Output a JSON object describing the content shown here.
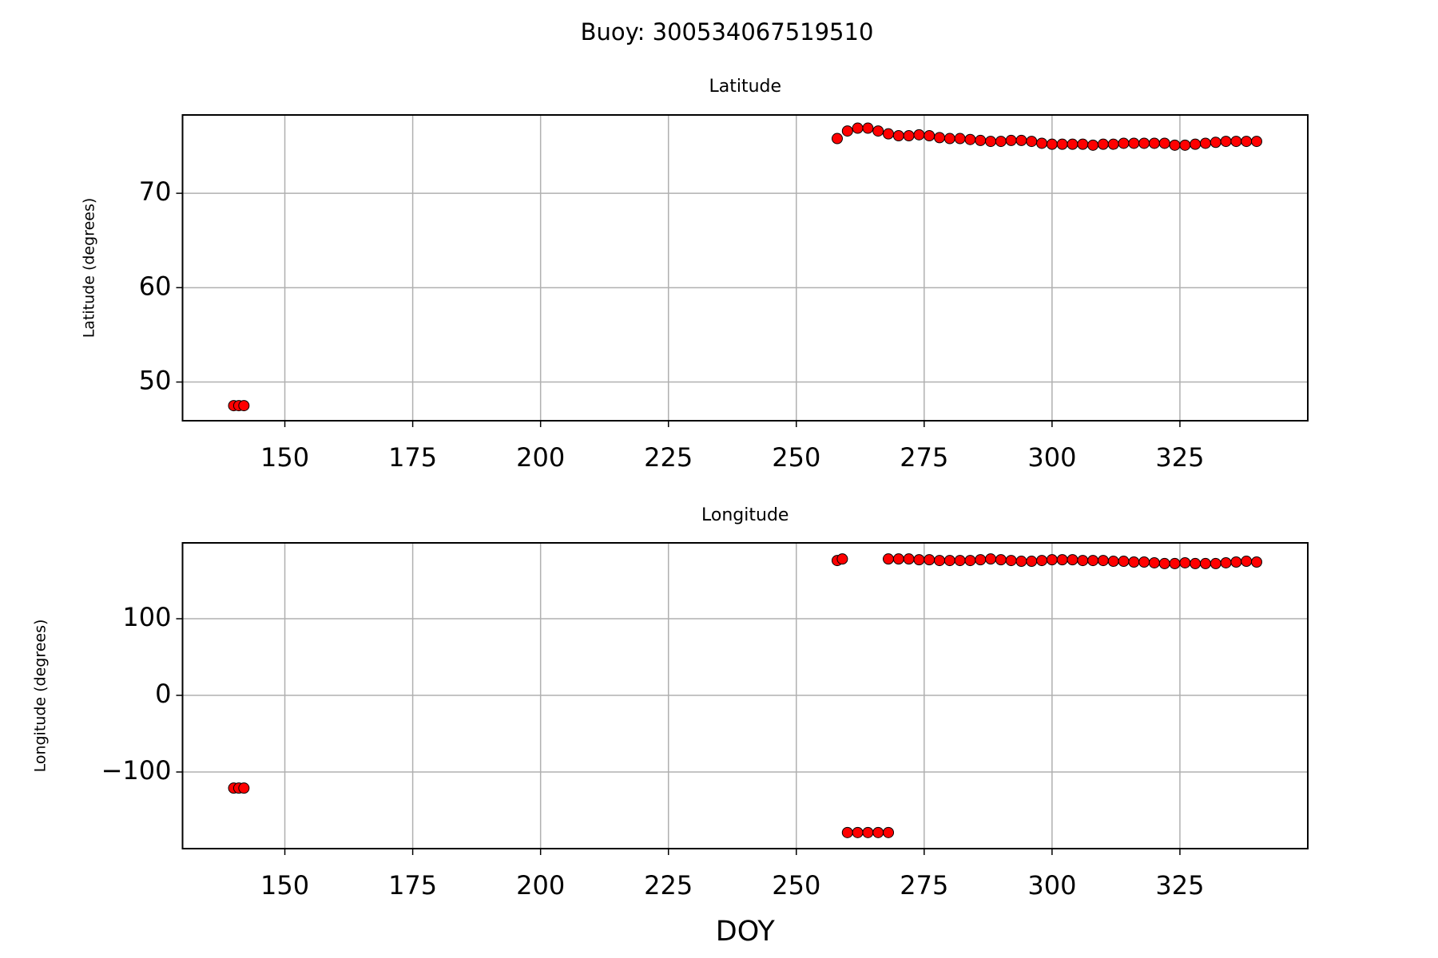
{
  "title": "Buoy: 300534067519510",
  "chart_data": [
    {
      "type": "scatter",
      "title": "Latitude",
      "ylabel": "Latitude (degrees)",
      "color": "#ff0000",
      "grid": true,
      "xlim": [
        130,
        350
      ],
      "xticks": [
        150,
        175,
        200,
        225,
        250,
        275,
        300,
        325
      ],
      "ylim": [
        45.9,
        78.3
      ],
      "yticks": [
        50,
        60,
        70
      ],
      "x": [
        140,
        141,
        142,
        258,
        260,
        262,
        264,
        266,
        268,
        270,
        272,
        274,
        276,
        278,
        280,
        282,
        284,
        286,
        288,
        290,
        292,
        294,
        296,
        298,
        300,
        302,
        304,
        306,
        308,
        310,
        312,
        314,
        316,
        318,
        320,
        322,
        324,
        326,
        328,
        330,
        332,
        334,
        336,
        338,
        340
      ],
      "values": [
        47.5,
        47.5,
        47.5,
        75.8,
        76.6,
        76.9,
        76.9,
        76.6,
        76.3,
        76.1,
        76.1,
        76.2,
        76.1,
        75.9,
        75.8,
        75.8,
        75.7,
        75.6,
        75.5,
        75.5,
        75.6,
        75.6,
        75.5,
        75.3,
        75.2,
        75.2,
        75.2,
        75.2,
        75.1,
        75.2,
        75.2,
        75.3,
        75.3,
        75.3,
        75.3,
        75.3,
        75.1,
        75.1,
        75.2,
        75.3,
        75.4,
        75.5,
        75.5,
        75.5,
        75.5
      ]
    },
    {
      "type": "scatter",
      "title": "Longitude",
      "ylabel": "Longitude (degrees)",
      "xlabel": "DOY",
      "color": "#ff0000",
      "grid": true,
      "xlim": [
        130,
        350
      ],
      "xticks": [
        150,
        175,
        200,
        225,
        250,
        275,
        300,
        325
      ],
      "ylim": [
        -200,
        199
      ],
      "yticks": [
        {
          "value": -100,
          "label": "−100"
        },
        0,
        100
      ],
      "x": [
        140,
        141,
        142,
        258,
        259,
        260,
        262,
        264,
        266,
        268,
        268,
        270,
        272,
        274,
        276,
        278,
        280,
        282,
        284,
        286,
        288,
        290,
        292,
        294,
        296,
        298,
        300,
        302,
        304,
        306,
        308,
        310,
        312,
        314,
        316,
        318,
        320,
        322,
        324,
        326,
        328,
        330,
        332,
        334,
        336,
        338,
        340
      ],
      "values": [
        -121,
        -121,
        -121,
        176,
        178,
        -179,
        -179,
        -179,
        -179,
        -179,
        178,
        178,
        178,
        177,
        177,
        176,
        176,
        176,
        176,
        177,
        178,
        177,
        176,
        175,
        175,
        176,
        177,
        177,
        177,
        176,
        176,
        176,
        175,
        175,
        174,
        174,
        173,
        172,
        172,
        173,
        172,
        172,
        172,
        173,
        174,
        175,
        174
      ]
    }
  ]
}
